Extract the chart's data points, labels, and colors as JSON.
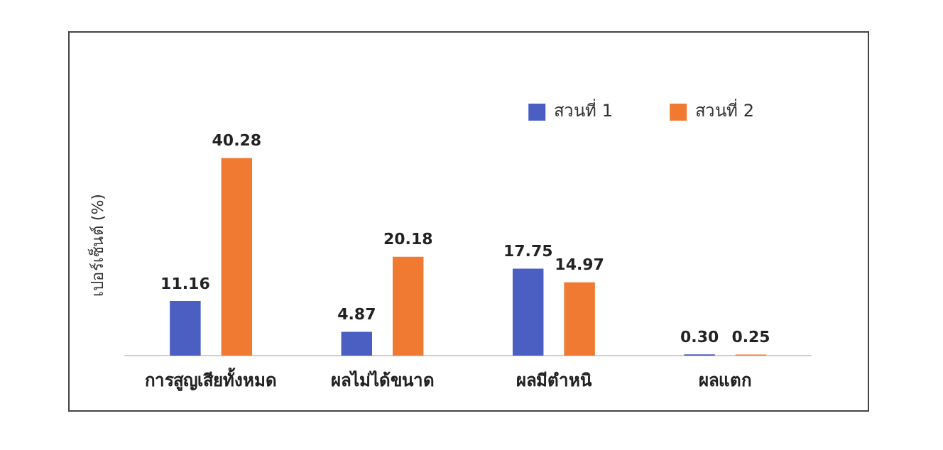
{
  "chart_data": {
    "type": "bar",
    "ylabel": "เปอร์เซ็นต์ (%)",
    "categories": [
      "การสูญเสียทั้งหมด",
      "ผลไม่ได้ขนาด",
      "ผลมีตำหนิ",
      "ผลแตก"
    ],
    "series": [
      {
        "name": "สวนที่ 1",
        "color": "#4a5fc1",
        "values": [
          11.16,
          4.87,
          17.75,
          0.3
        ],
        "value_labels": [
          "11.16",
          "4.87",
          "17.75",
          "0.30"
        ]
      },
      {
        "name": "สวนที่ 2",
        "color": "#f07a32",
        "values": [
          40.28,
          20.18,
          14.97,
          0.25
        ],
        "value_labels": [
          "40.28",
          "20.18",
          "14.97",
          "0.25"
        ]
      }
    ],
    "data_labels": true,
    "legend": "top right",
    "grid": false,
    "tick_labels": "x"
  }
}
